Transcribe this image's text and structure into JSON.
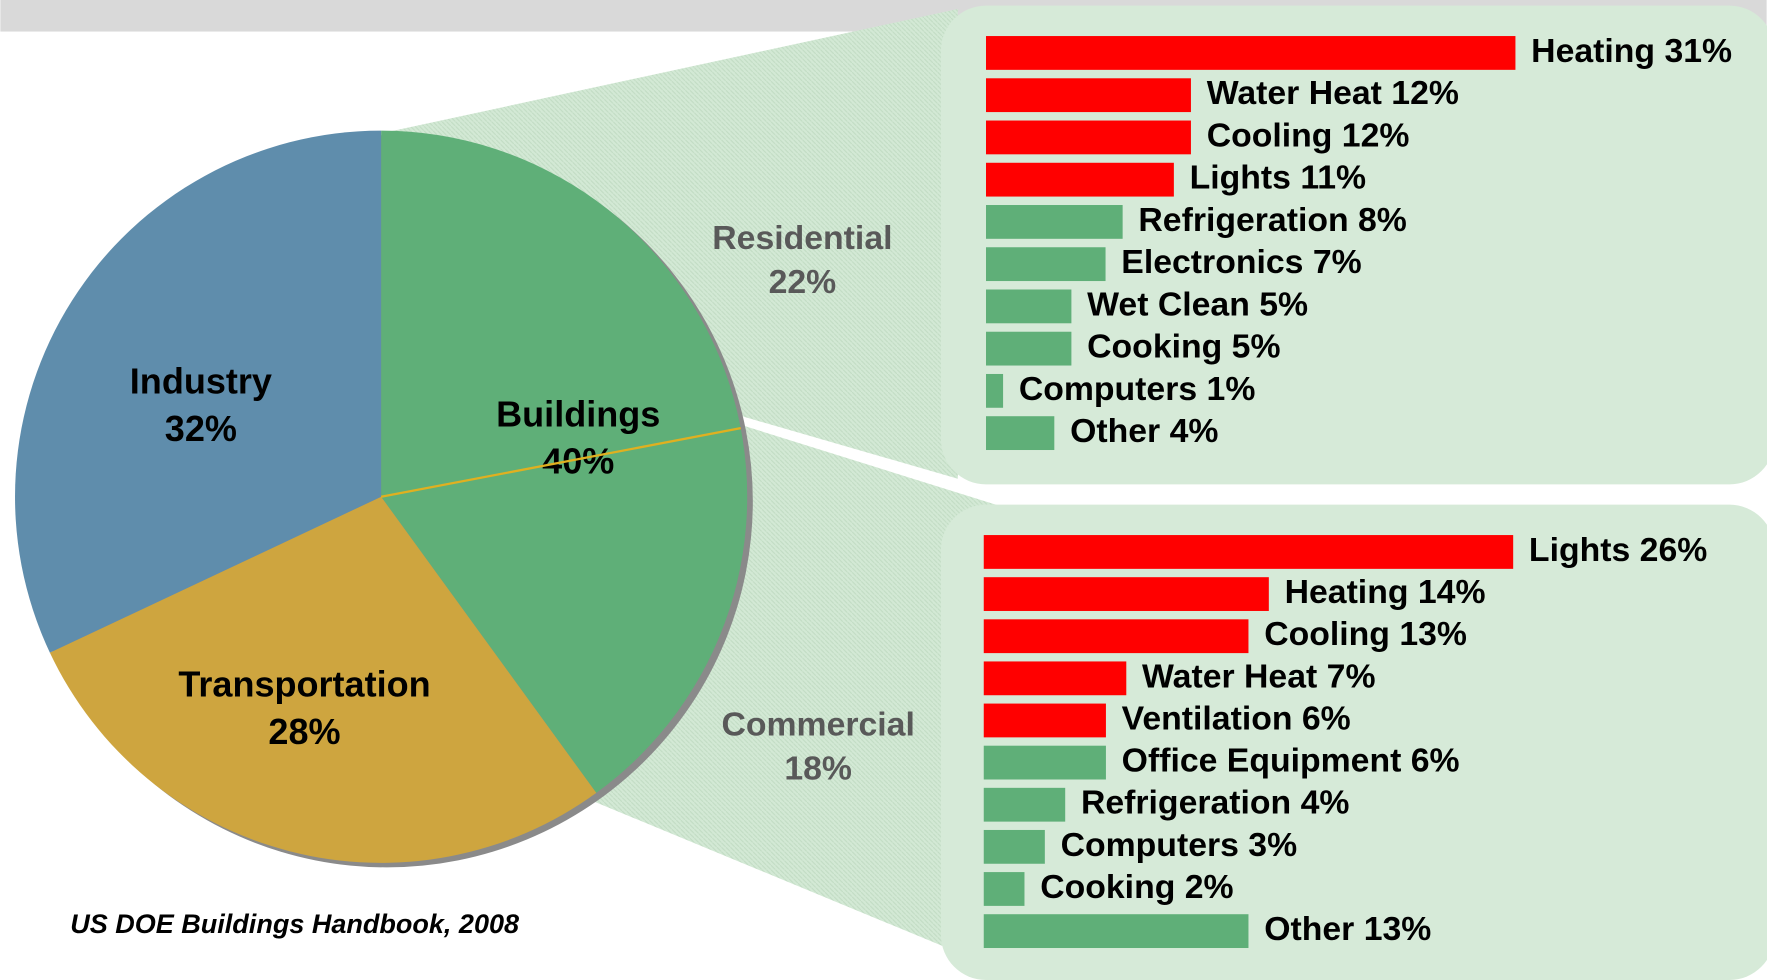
{
  "chart_data": [
    {
      "type": "pie",
      "categories": [
        "Buildings",
        "Transportation",
        "Industry"
      ],
      "values": [
        40,
        28,
        32
      ],
      "value_labels": [
        "40%",
        "28%",
        "32%"
      ],
      "colors": [
        "#5faf78",
        "#cea53f",
        "#5f8dac"
      ],
      "subcategories": [
        "Residential",
        "Commercial"
      ],
      "subvalues": [
        22,
        18
      ],
      "subvalue_labels": [
        "22%",
        "18%"
      ],
      "source": "US DOE Buildings Handbook, 2008"
    },
    {
      "type": "bar",
      "categories": [
        "Heating",
        "Water Heat",
        "Cooling",
        "Lights",
        "Refrigeration",
        "Electronics",
        "Wet Clean",
        "Cooking",
        "Computers",
        "Other"
      ],
      "values": [
        31,
        12,
        12,
        11,
        8,
        7,
        5,
        5,
        1,
        4
      ],
      "value_labels": [
        "31%",
        "12%",
        "12%",
        "11%",
        "8%",
        "7%",
        "5%",
        "5%",
        "1%",
        "4%"
      ],
      "colors": [
        "#ff0000",
        "#ff0000",
        "#ff0000",
        "#ff0000",
        "#5faf78",
        "#5faf78",
        "#5faf78",
        "#5faf78",
        "#5faf78",
        "#5faf78"
      ]
    },
    {
      "type": "bar",
      "categories": [
        "Lights",
        "Heating",
        "Cooling",
        "Water Heat",
        "Ventilation",
        "Office Equipment",
        "Refrigeration",
        "Computers",
        "Cooking",
        "Other"
      ],
      "values": [
        26,
        14,
        13,
        7,
        6,
        6,
        4,
        3,
        2,
        13
      ],
      "value_labels": [
        "26%",
        "14%",
        "13%",
        "7%",
        "6%",
        "6%",
        "4%",
        "3%",
        "2%",
        "13%"
      ],
      "colors": [
        "#ff0000",
        "#ff0000",
        "#ff0000",
        "#ff0000",
        "#ff0000",
        "#5faf78",
        "#5faf78",
        "#5faf78",
        "#5faf78",
        "#5faf78"
      ]
    }
  ]
}
